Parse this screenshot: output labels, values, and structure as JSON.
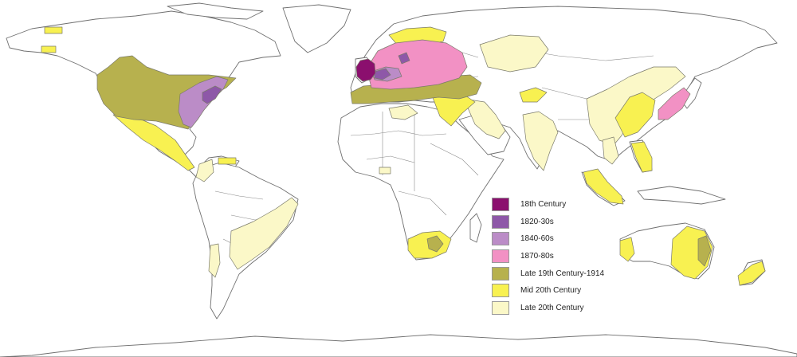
{
  "legend": [
    {
      "label": "18th Century",
      "color": "#8b0f6e"
    },
    {
      "label": "1820-30s",
      "color": "#8e58a8"
    },
    {
      "label": "1840-60s",
      "color": "#bb8cc7"
    },
    {
      "label": "1870-80s",
      "color": "#f291c4"
    },
    {
      "label": "Late 19th Century-1914",
      "color": "#b7b14e"
    },
    {
      "label": "Mid 20th Century",
      "color": "#f8f151"
    },
    {
      "label": "Late 20th Century",
      "color": "#fbf8c8"
    }
  ]
}
